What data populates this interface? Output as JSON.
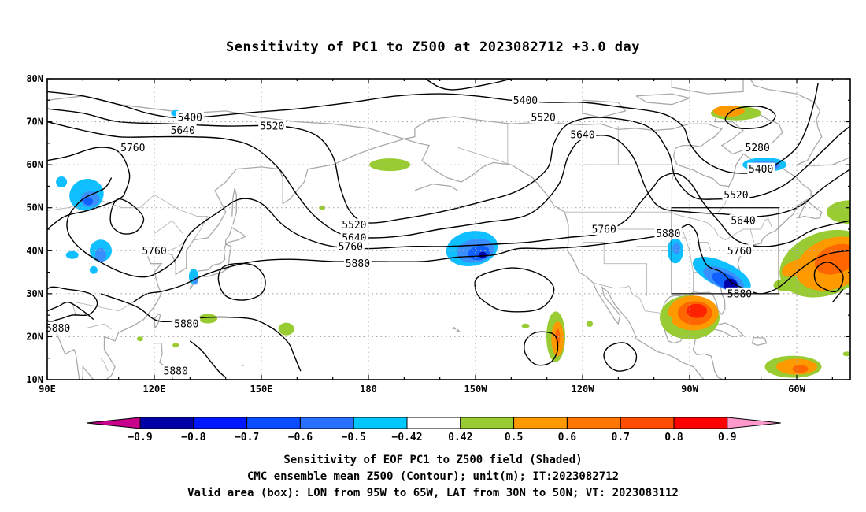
{
  "title": "Sensitivity of PC1 to Z500 at 2023082712 +3.0 day",
  "map": {
    "lat_labels": [
      "80N",
      "70N",
      "60N",
      "50N",
      "40N",
      "30N",
      "20N",
      "10N"
    ],
    "lat_values": [
      80,
      70,
      60,
      50,
      40,
      30,
      20,
      10
    ],
    "lon_labels": [
      "90E",
      "120E",
      "150E",
      "180",
      "150W",
      "120W",
      "90W",
      "60W"
    ],
    "lon_values": [
      90,
      120,
      150,
      180,
      210,
      240,
      270,
      300
    ],
    "extent": {
      "lon_min": 90,
      "lon_max": 315,
      "lat_min": 10,
      "lat_max": 80
    },
    "valid_box": {
      "lon_min": 265,
      "lon_max": 295,
      "lat_min": 30,
      "lat_max": 50
    },
    "contour_labels": [
      {
        "text": "5400",
        "lon": 130,
        "lat": 71
      },
      {
        "text": "5400",
        "lon": 224,
        "lat": 75
      },
      {
        "text": "5400",
        "lon": 290,
        "lat": 59
      },
      {
        "text": "5520",
        "lon": 153,
        "lat": 69
      },
      {
        "text": "5520",
        "lon": 229,
        "lat": 71
      },
      {
        "text": "5520",
        "lon": 283,
        "lat": 53
      },
      {
        "text": "5520",
        "lon": 176,
        "lat": 46
      },
      {
        "text": "5640",
        "lon": 128,
        "lat": 68
      },
      {
        "text": "5640",
        "lon": 240,
        "lat": 67
      },
      {
        "text": "5640",
        "lon": 285,
        "lat": 47
      },
      {
        "text": "5640",
        "lon": 176,
        "lat": 43
      },
      {
        "text": "5760",
        "lon": 114,
        "lat": 64
      },
      {
        "text": "5760",
        "lon": 120,
        "lat": 40
      },
      {
        "text": "5760",
        "lon": 175,
        "lat": 41
      },
      {
        "text": "5760",
        "lon": 246,
        "lat": 45
      },
      {
        "text": "5760",
        "lon": 284,
        "lat": 40
      },
      {
        "text": "5880",
        "lon": 264,
        "lat": 44
      },
      {
        "text": "5880",
        "lon": 284,
        "lat": 30
      },
      {
        "text": "5880",
        "lon": 177,
        "lat": 37
      },
      {
        "text": "5880",
        "lon": 129,
        "lat": 23
      },
      {
        "text": "5880",
        "lon": 93,
        "lat": 22
      },
      {
        "text": "5880",
        "lon": 126,
        "lat": 12
      },
      {
        "text": "5280",
        "lon": 289,
        "lat": 64
      }
    ],
    "shading_colors": {
      "neg_0.9": "#0000a8",
      "neg_0.8": "#0018ff",
      "neg_0.7": "#1060ff",
      "neg_0.5": "#3a8fff",
      "neg_0.42": "#10bfff",
      "pos_0.42": "#99cc33",
      "pos_0.5": "#ff9900",
      "pos_0.6": "#ff6600",
      "pos_0.8": "#ff2200"
    }
  },
  "colorbar": {
    "labels": [
      "-0.9",
      "-0.8",
      "-0.7",
      "-0.6",
      "-0.5",
      "-0.42",
      "0.42",
      "0.5",
      "0.6",
      "0.7",
      "0.8",
      "0.9"
    ],
    "colors": [
      "#0000a8",
      "#0018ff",
      "#0a4dff",
      "#2a70ff",
      "#00c8ff",
      "#ffffff",
      "#99cc33",
      "#ff9900",
      "#ff7700",
      "#ff4d00",
      "#ff0000"
    ],
    "low_end_color": "#c8008c",
    "high_end_color": "#ff99cc"
  },
  "captions": {
    "line1": "Sensitivity of EOF PC1 to Z500 field (Shaded)",
    "line2": "CMC ensemble mean Z500 (Contour); unit(m); IT:2023082712",
    "line3": "Valid area (box): LON from 95W to 65W, LAT from 30N to 50N; VT: 2023083112"
  }
}
